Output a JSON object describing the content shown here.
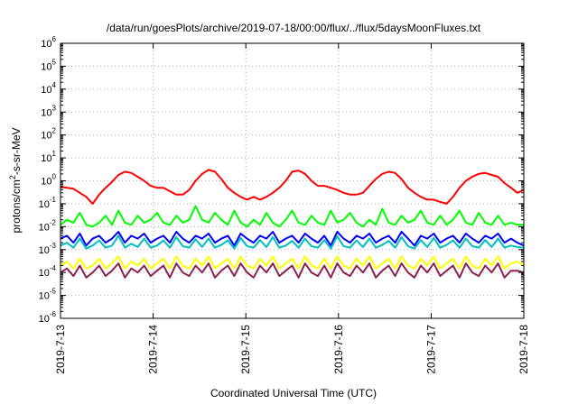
{
  "chart_data": {
    "type": "line",
    "title": "/data/run/goesPlots/archive/2019-07-18/00:00/flux/../flux/5daysMoonFluxes.txt",
    "xlabel": "Coordinated Universal Time (UTC)",
    "ylabel_parts": {
      "base": "protons/cm",
      "sup": "2",
      "rest": "-s-sr-MeV"
    },
    "y_scale": "log",
    "ylim_exponents": [
      -6,
      6
    ],
    "y_tick_exponents": [
      -6,
      -5,
      -4,
      -3,
      -2,
      -1,
      0,
      1,
      2,
      3,
      4,
      5,
      6
    ],
    "xlim_days": [
      "2019-7-13",
      "2019-7-18"
    ],
    "x_ticks": [
      "2019-7-13",
      "2019-7-14",
      "2019-7-15",
      "2019-7-16",
      "2019-7-17",
      "2019-7-18"
    ],
    "grid": true,
    "series": [
      {
        "color": "#ff0000",
        "values": [
          0.55,
          0.5,
          0.45,
          0.3,
          0.2,
          0.1,
          0.25,
          0.5,
          0.9,
          1.8,
          2.5,
          2.2,
          1.5,
          1.0,
          0.6,
          0.5,
          0.5,
          0.35,
          0.25,
          0.25,
          0.4,
          1.0,
          2.0,
          3.0,
          2.5,
          1.2,
          0.5,
          0.3,
          0.2,
          0.15,
          0.2,
          0.15,
          0.2,
          0.3,
          0.5,
          1.0,
          2.5,
          2.8,
          2.0,
          1.0,
          0.6,
          0.6,
          0.5,
          0.4,
          0.3,
          0.25,
          0.25,
          0.3,
          0.6,
          1.2,
          2.0,
          2.5,
          2.2,
          1.2,
          0.5,
          0.3,
          0.2,
          0.15,
          0.15,
          0.12,
          0.1,
          0.2,
          0.5,
          1.0,
          1.5,
          2.0,
          2.2,
          1.8,
          1.5,
          0.8,
          0.5,
          0.3,
          0.4
        ]
      },
      {
        "color": "#00ff00",
        "values": [
          0.012,
          0.02,
          0.015,
          0.04,
          0.012,
          0.01,
          0.015,
          0.03,
          0.012,
          0.05,
          0.015,
          0.012,
          0.03,
          0.015,
          0.02,
          0.04,
          0.015,
          0.012,
          0.03,
          0.015,
          0.02,
          0.08,
          0.02,
          0.015,
          0.04,
          0.02,
          0.012,
          0.05,
          0.015,
          0.01,
          0.02,
          0.012,
          0.04,
          0.015,
          0.01,
          0.02,
          0.05,
          0.015,
          0.012,
          0.03,
          0.015,
          0.012,
          0.05,
          0.015,
          0.02,
          0.04,
          0.015,
          0.01,
          0.02,
          0.012,
          0.06,
          0.015,
          0.012,
          0.03,
          0.015,
          0.02,
          0.05,
          0.015,
          0.012,
          0.03,
          0.012,
          0.02,
          0.05,
          0.015,
          0.012,
          0.04,
          0.015,
          0.012,
          0.03,
          0.012,
          0.015,
          0.012,
          0.012
        ]
      },
      {
        "color": "#0000ff",
        "values": [
          0.003,
          0.004,
          0.002,
          0.005,
          0.0015,
          0.003,
          0.004,
          0.002,
          0.003,
          0.006,
          0.002,
          0.004,
          0.003,
          0.005,
          0.002,
          0.003,
          0.004,
          0.002,
          0.006,
          0.003,
          0.002,
          0.004,
          0.003,
          0.005,
          0.002,
          0.003,
          0.004,
          0.0015,
          0.005,
          0.003,
          0.002,
          0.004,
          0.003,
          0.006,
          0.002,
          0.003,
          0.004,
          0.002,
          0.005,
          0.003,
          0.002,
          0.004,
          0.0015,
          0.006,
          0.003,
          0.002,
          0.004,
          0.003,
          0.005,
          0.002,
          0.003,
          0.004,
          0.002,
          0.006,
          0.003,
          0.0015,
          0.004,
          0.003,
          0.005,
          0.002,
          0.003,
          0.004,
          0.002,
          0.005,
          0.003,
          0.002,
          0.004,
          0.003,
          0.005,
          0.002,
          0.003,
          0.002,
          0.0015
        ]
      },
      {
        "color": "#00c0c0",
        "values": [
          0.0015,
          0.002,
          0.0012,
          0.003,
          0.0011,
          0.0015,
          0.0025,
          0.0012,
          0.0015,
          0.004,
          0.0012,
          0.0018,
          0.0013,
          0.003,
          0.0012,
          0.0015,
          0.0025,
          0.0012,
          0.0035,
          0.0014,
          0.0012,
          0.0028,
          0.0013,
          0.003,
          0.0012,
          0.0016,
          0.0025,
          0.0011,
          0.0032,
          0.0014,
          0.0012,
          0.0026,
          0.0013,
          0.0035,
          0.0012,
          0.0015,
          0.0024,
          0.0012,
          0.003,
          0.0014,
          0.0012,
          0.0026,
          0.0011,
          0.0038,
          0.0014,
          0.0012,
          0.0025,
          0.0013,
          0.003,
          0.0012,
          0.0016,
          0.0024,
          0.0012,
          0.0035,
          0.0014,
          0.0011,
          0.0026,
          0.0013,
          0.0032,
          0.0012,
          0.0016,
          0.0025,
          0.0012,
          0.003,
          0.0014,
          0.0012,
          0.0026,
          0.0013,
          0.003,
          0.0012,
          0.0015,
          0.0013,
          0.0012
        ]
      },
      {
        "color": "#ffff00",
        "values": [
          0.0002,
          0.0003,
          0.00015,
          0.0004,
          0.00015,
          0.0002,
          0.0004,
          0.00015,
          0.00025,
          0.0005,
          0.00015,
          0.0003,
          0.0002,
          0.0004,
          0.00015,
          0.00025,
          0.0004,
          0.00015,
          0.0005,
          0.0002,
          0.00015,
          0.0004,
          0.0002,
          0.0005,
          0.00015,
          0.00025,
          0.0004,
          0.00015,
          0.0005,
          0.0002,
          0.00015,
          0.0004,
          0.0002,
          0.0005,
          0.00015,
          0.00025,
          0.0004,
          0.00015,
          0.0005,
          0.0002,
          0.00015,
          0.0004,
          0.00015,
          0.0005,
          0.0002,
          0.00015,
          0.0004,
          0.0002,
          0.0005,
          0.00015,
          0.00025,
          0.0004,
          0.00015,
          0.0005,
          0.0002,
          0.00015,
          0.0004,
          0.0002,
          0.0005,
          0.00015,
          0.00025,
          0.0004,
          0.00015,
          0.0005,
          0.0002,
          0.00015,
          0.0004,
          0.0002,
          0.0005,
          0.00015,
          0.00025,
          0.0003,
          0.0002
        ]
      },
      {
        "color": "#8b2252",
        "values": [
          0.0001,
          0.00015,
          7e-05,
          0.0002,
          6e-05,
          0.0001,
          0.0002,
          7e-05,
          0.00012,
          0.00025,
          6e-05,
          0.00015,
          0.0001,
          0.0002,
          7e-05,
          0.00012,
          0.0002,
          6e-05,
          0.00025,
          0.0001,
          7e-05,
          0.0002,
          0.0001,
          0.00025,
          6e-05,
          0.00012,
          0.0002,
          7e-05,
          0.00025,
          0.0001,
          6e-05,
          0.0002,
          0.0001,
          0.00025,
          7e-05,
          0.00012,
          0.0002,
          6e-05,
          0.00025,
          0.0001,
          7e-05,
          0.0002,
          6e-05,
          0.00025,
          0.0001,
          7e-05,
          0.0002,
          0.0001,
          0.00025,
          6e-05,
          0.00012,
          0.0002,
          7e-05,
          0.00025,
          0.0001,
          6e-05,
          0.0002,
          0.0001,
          0.00025,
          7e-05,
          0.00012,
          0.0002,
          6e-05,
          0.00025,
          0.0001,
          7e-05,
          0.0002,
          0.0001,
          0.00025,
          6e-05,
          0.00012,
          0.00012,
          0.0001
        ]
      }
    ]
  }
}
